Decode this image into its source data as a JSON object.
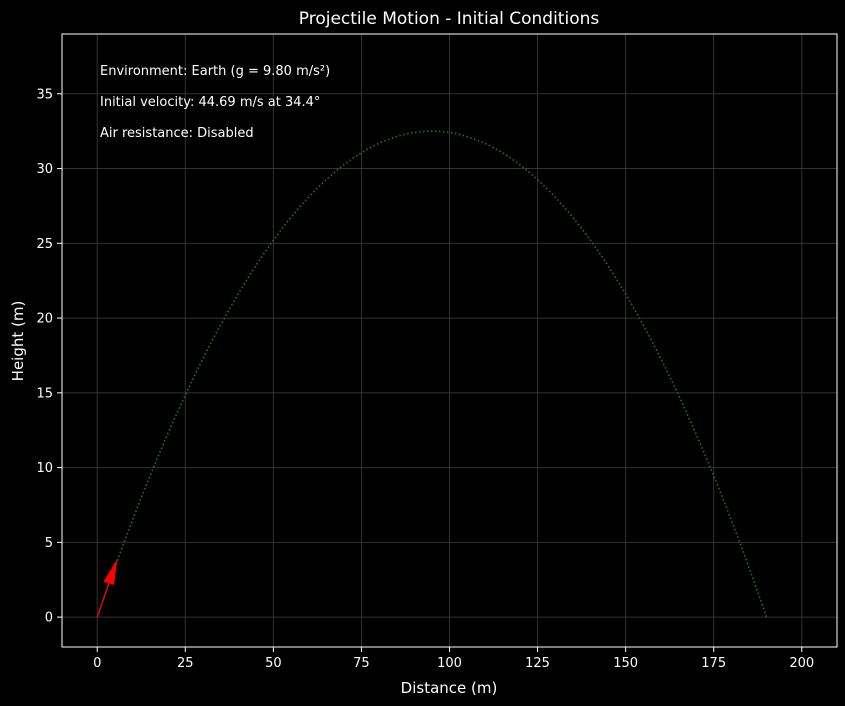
{
  "chart_data": {
    "type": "line",
    "title": "Projectile Motion - Initial Conditions",
    "xlabel": "Distance (m)",
    "ylabel": "Height (m)",
    "xlim": [
      -10,
      210
    ],
    "ylim": [
      -2,
      39
    ],
    "xticks": [
      0,
      25,
      50,
      75,
      100,
      125,
      150,
      175,
      200
    ],
    "yticks": [
      0,
      5,
      10,
      15,
      20,
      25,
      30,
      35
    ],
    "grid": true,
    "colors": {
      "background": "#000000",
      "text": "#ffffff",
      "grid": "#333333",
      "trajectory": "#1a7a1a",
      "velocity_arrow": "#ff0000"
    },
    "annotations": [
      "Environment: Earth (g = 9.80 m/s²)",
      "Initial velocity: 44.69 m/s at 34.4°",
      "Air resistance: Disabled"
    ],
    "trajectory": {
      "style": "dotted",
      "x_start": 0,
      "x_end": 190,
      "peak_x": 95,
      "peak_height": 32.5
    },
    "velocity_arrow": {
      "x0": 0,
      "y0": 0,
      "x1": 5.7,
      "y1": 3.9
    }
  }
}
